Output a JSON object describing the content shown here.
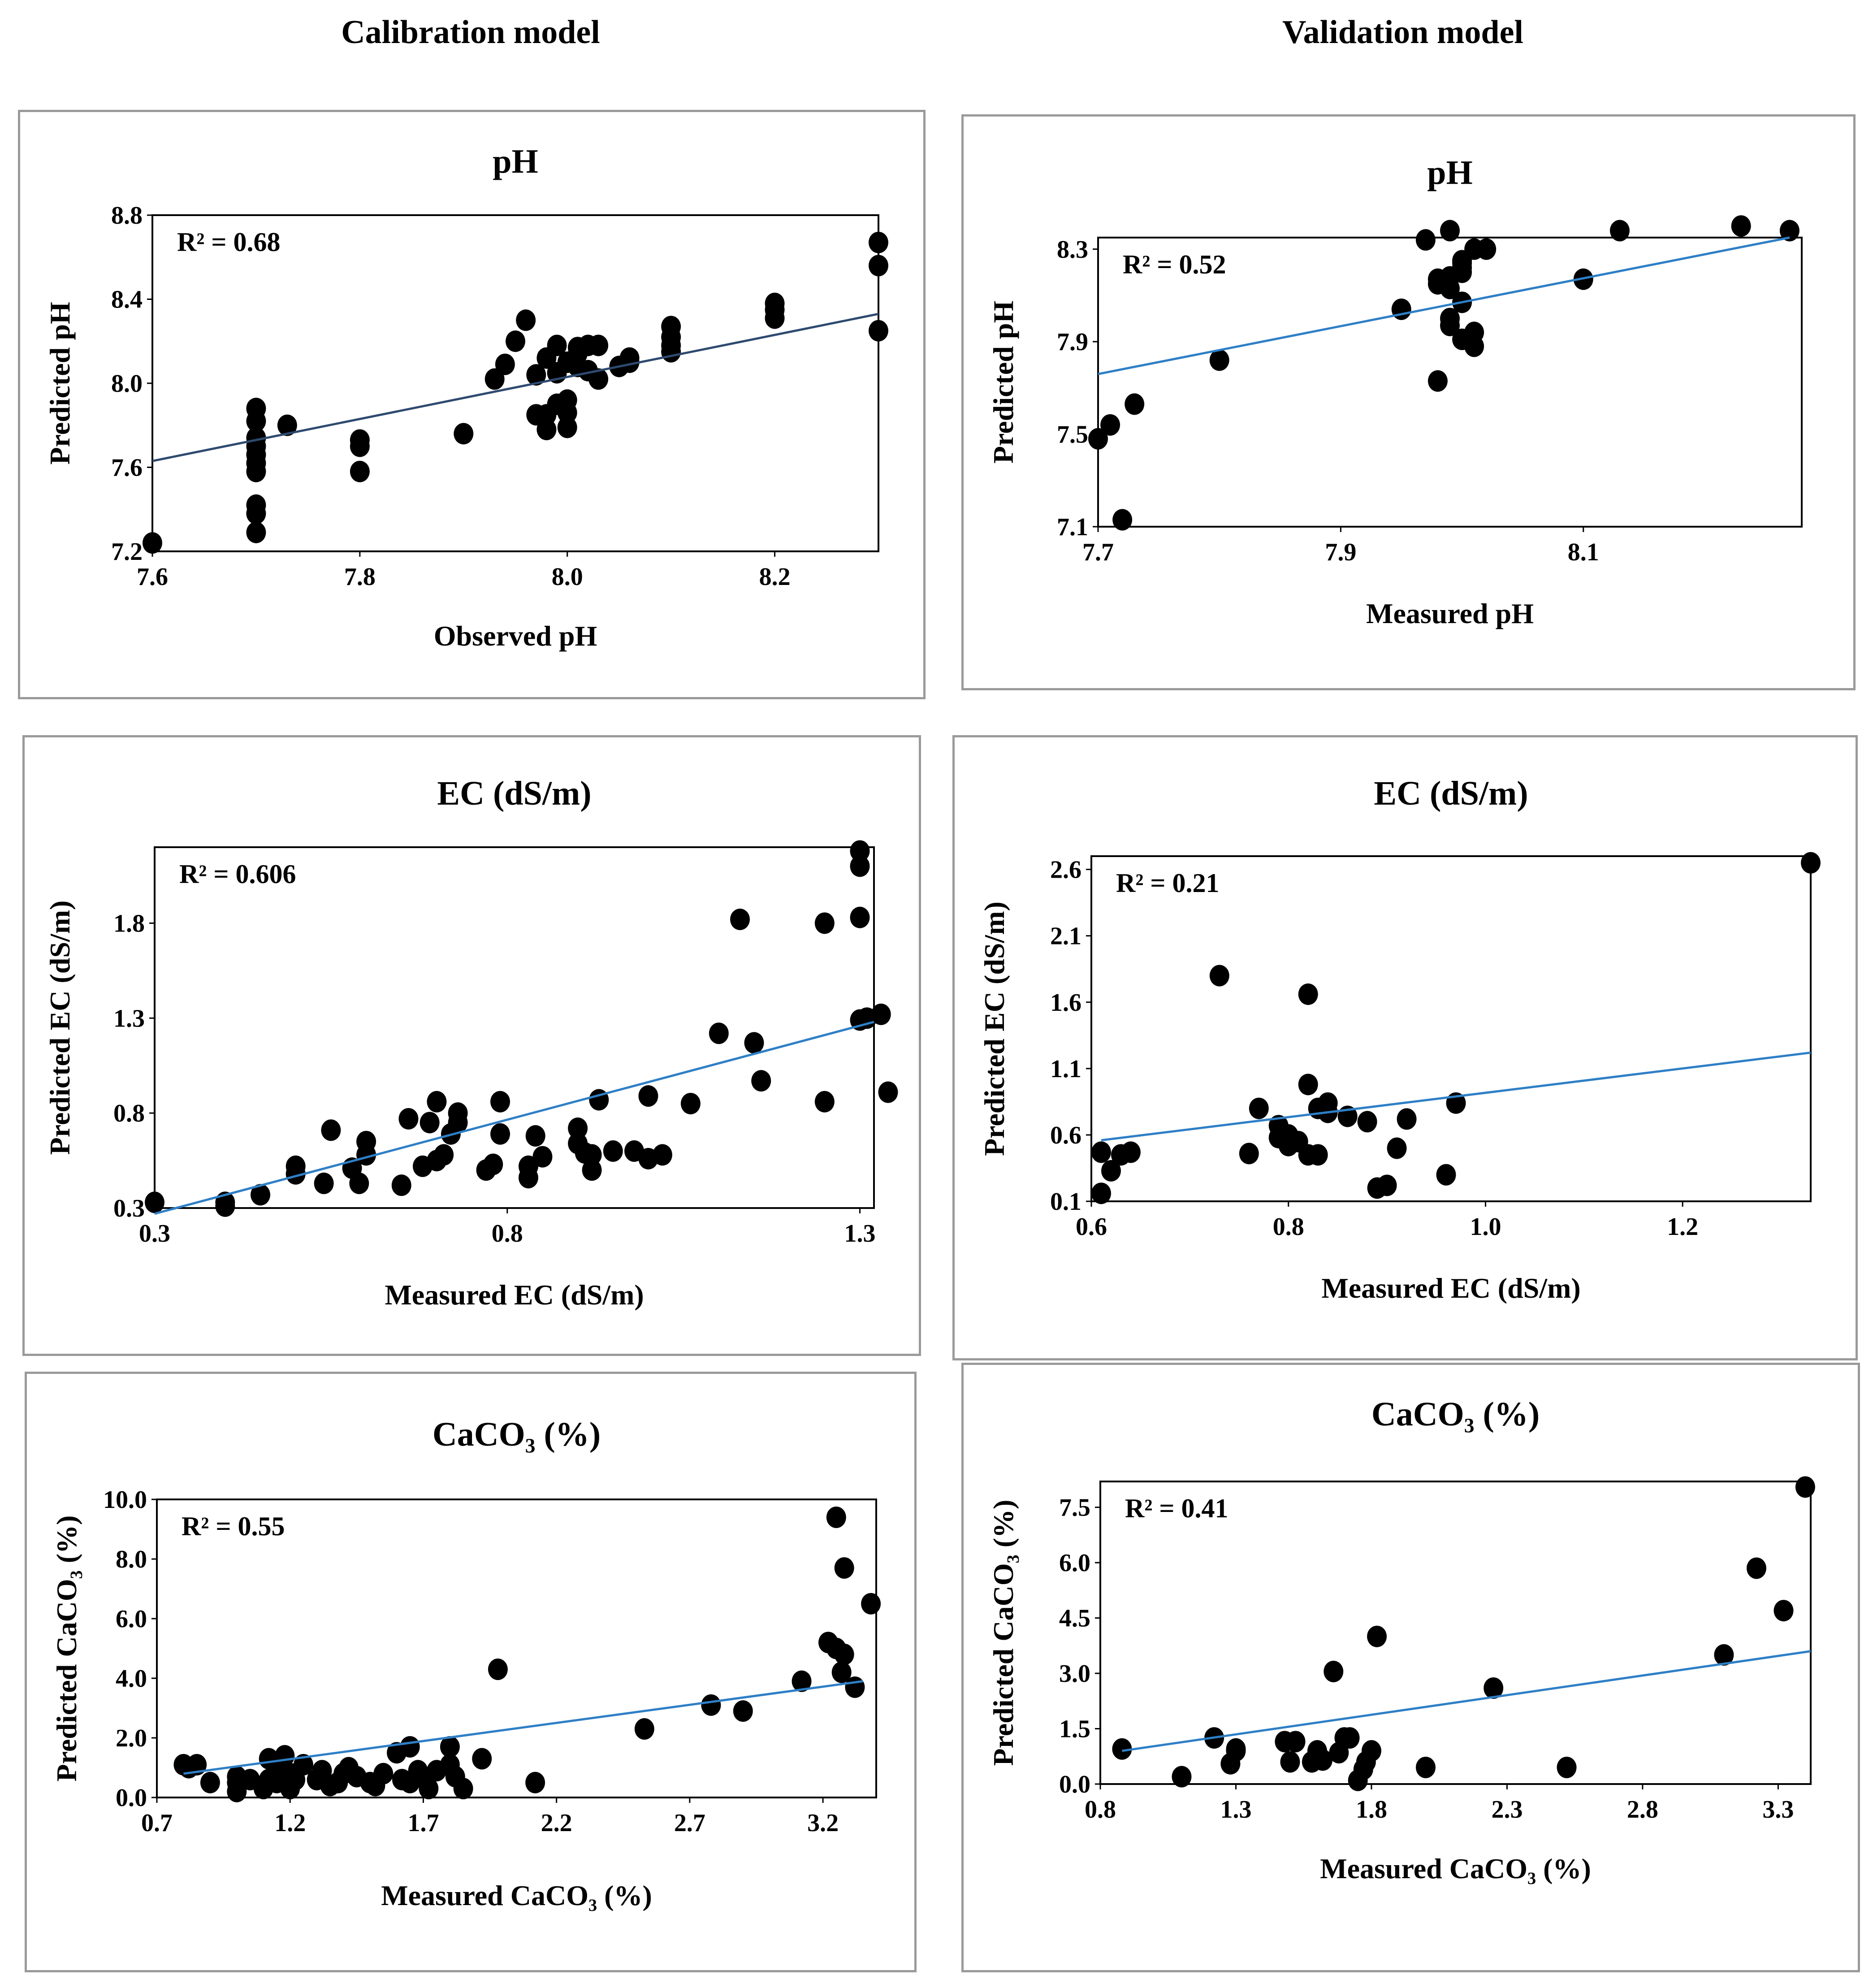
{
  "column_headers": {
    "left": "Calibration model",
    "right": "Validation model"
  },
  "colors": {
    "point": "#000000",
    "trend_calibration_ph": "#2e4a6f",
    "trend": "#2e7fc6",
    "frame": "#000000",
    "panel_border": "#9a9a9a"
  },
  "chart_data": [
    {
      "id": "cal-ph",
      "type": "scatter",
      "title": "pH",
      "xlabel": "Observed pH",
      "ylabel": "Predicted pH",
      "r2_label": "R² = 0.68",
      "xlim": [
        7.6,
        8.3
      ],
      "ylim": [
        7.2,
        8.8
      ],
      "xticks": [
        "7.6",
        "7.8",
        "8.0",
        "8.2"
      ],
      "yticks": [
        "7.2",
        "7.6",
        "8.0",
        "8.4",
        "8.8"
      ],
      "trend": {
        "x": [
          7.6,
          8.3
        ],
        "y": [
          7.63,
          8.33
        ]
      },
      "x": [
        7.6,
        7.7,
        7.7,
        7.7,
        7.7,
        7.7,
        7.7,
        7.7,
        7.7,
        7.7,
        7.7,
        7.73,
        7.8,
        7.8,
        7.8,
        7.9,
        7.93,
        7.94,
        7.95,
        7.96,
        7.97,
        7.97,
        7.98,
        7.98,
        7.98,
        7.99,
        7.99,
        7.99,
        8.0,
        8.0,
        8.0,
        8.0,
        8.01,
        8.01,
        8.01,
        8.02,
        8.02,
        8.03,
        8.03,
        8.05,
        8.06,
        8.06,
        8.1,
        8.1,
        8.1,
        8.1,
        8.2,
        8.2,
        8.2,
        8.3,
        8.3,
        8.3
      ],
      "y": [
        7.24,
        7.29,
        7.38,
        7.42,
        7.58,
        7.62,
        7.66,
        7.7,
        7.74,
        7.82,
        7.88,
        7.8,
        7.58,
        7.7,
        7.73,
        7.76,
        8.02,
        8.09,
        8.2,
        8.3,
        7.85,
        8.04,
        7.78,
        7.85,
        8.12,
        7.9,
        8.05,
        8.18,
        7.79,
        7.86,
        7.92,
        8.1,
        8.08,
        8.14,
        8.17,
        8.06,
        8.18,
        8.02,
        8.18,
        8.08,
        8.1,
        8.12,
        8.15,
        8.18,
        8.22,
        8.27,
        8.31,
        8.35,
        8.38,
        8.25,
        8.56,
        8.67
      ]
    },
    {
      "id": "val-ph",
      "type": "scatter",
      "title": "pH",
      "xlabel": "Measured pH",
      "ylabel": "Predicted pH",
      "r2_label": "R² = 0.52",
      "xlim": [
        7.7,
        8.28
      ],
      "ylim": [
        7.1,
        8.35
      ],
      "xticks": [
        "7.7",
        "7.9",
        "8.1"
      ],
      "yticks": [
        "7.1",
        "7.5",
        "7.9",
        "8.3"
      ],
      "trend": {
        "x": [
          7.7,
          8.27
        ],
        "y": [
          7.76,
          8.35
        ]
      },
      "x": [
        7.7,
        7.71,
        7.72,
        7.73,
        7.8,
        7.95,
        7.97,
        7.98,
        7.98,
        7.98,
        7.99,
        7.99,
        7.99,
        7.99,
        7.99,
        8.0,
        8.0,
        8.0,
        8.0,
        8.0,
        8.0,
        8.01,
        8.01,
        8.01,
        8.02,
        8.1,
        8.13,
        8.23,
        8.27
      ],
      "y": [
        7.48,
        7.54,
        7.13,
        7.63,
        7.82,
        8.04,
        8.34,
        7.73,
        8.17,
        8.15,
        8.38,
        8.0,
        8.13,
        7.97,
        8.18,
        7.91,
        8.07,
        8.2,
        8.24,
        8.22,
        8.25,
        7.88,
        7.94,
        8.3,
        8.3,
        8.17,
        8.38,
        8.4,
        8.38
      ]
    },
    {
      "id": "cal-ec",
      "type": "scatter",
      "title": "EC (dS/m)",
      "xlabel": "Measured EC (dS/m)",
      "ylabel": "Predicted EC (dS/m)",
      "r2_label": "R² = 0.606",
      "xlim": [
        0.3,
        1.32
      ],
      "ylim": [
        0.3,
        2.2
      ],
      "xticks": [
        "0.3",
        "0.8",
        "1.3"
      ],
      "yticks": [
        "0.3",
        "0.8",
        "1.3",
        "1.8"
      ],
      "trend": {
        "x": [
          0.3,
          1.32
        ],
        "y": [
          0.27,
          1.28
        ]
      },
      "x": [
        0.3,
        0.4,
        0.4,
        0.45,
        0.5,
        0.5,
        0.54,
        0.55,
        0.58,
        0.59,
        0.6,
        0.6,
        0.65,
        0.66,
        0.68,
        0.69,
        0.7,
        0.7,
        0.71,
        0.72,
        0.73,
        0.73,
        0.77,
        0.78,
        0.79,
        0.79,
        0.83,
        0.83,
        0.84,
        0.85,
        0.9,
        0.9,
        0.91,
        0.92,
        0.92,
        0.93,
        0.95,
        0.98,
        1.0,
        1.0,
        1.02,
        1.06,
        1.1,
        1.13,
        1.15,
        1.16,
        1.25,
        1.25,
        1.3,
        1.3,
        1.3,
        1.3,
        1.31,
        1.33,
        1.34
      ],
      "y": [
        0.33,
        0.31,
        0.33,
        0.37,
        0.48,
        0.52,
        0.43,
        0.71,
        0.51,
        0.43,
        0.58,
        0.65,
        0.42,
        0.77,
        0.52,
        0.75,
        0.86,
        0.55,
        0.58,
        0.69,
        0.8,
        0.75,
        0.5,
        0.53,
        0.86,
        0.69,
        0.52,
        0.46,
        0.68,
        0.57,
        0.72,
        0.64,
        0.59,
        0.5,
        0.58,
        0.87,
        0.6,
        0.6,
        0.56,
        0.89,
        0.58,
        0.85,
        1.22,
        1.82,
        1.17,
        0.97,
        0.86,
        1.8,
        1.29,
        1.83,
        2.1,
        2.18,
        1.3,
        1.32,
        0.91
      ]
    },
    {
      "id": "val-ec",
      "type": "scatter",
      "title": "EC (dS/m)",
      "xlabel": "Measured EC (dS/m)",
      "ylabel": "Predicted EC (dS/m)",
      "r2_label": "R² = 0.21",
      "xlim": [
        0.6,
        1.33
      ],
      "ylim": [
        0.1,
        2.7
      ],
      "xticks": [
        "0.6",
        "0.8",
        "1.0",
        "1.2"
      ],
      "yticks": [
        "0.1",
        "0.6",
        "1.1",
        "1.6",
        "2.1",
        "2.6"
      ],
      "trend": {
        "x": [
          0.61,
          1.33
        ],
        "y": [
          0.56,
          1.22
        ]
      },
      "x": [
        0.61,
        0.61,
        0.62,
        0.63,
        0.64,
        0.73,
        0.76,
        0.77,
        0.79,
        0.79,
        0.8,
        0.8,
        0.81,
        0.82,
        0.82,
        0.82,
        0.83,
        0.83,
        0.84,
        0.84,
        0.86,
        0.88,
        0.89,
        0.9,
        0.91,
        0.92,
        0.96,
        0.97,
        1.33
      ],
      "y": [
        0.16,
        0.47,
        0.33,
        0.45,
        0.47,
        1.8,
        0.46,
        0.8,
        0.58,
        0.67,
        0.6,
        0.52,
        0.55,
        0.45,
        1.66,
        0.98,
        0.8,
        0.45,
        0.77,
        0.84,
        0.74,
        0.7,
        0.2,
        0.22,
        0.5,
        0.72,
        0.3,
        0.84,
        2.65
      ]
    },
    {
      "id": "cal-caco3",
      "type": "scatter",
      "title": "CaCO₃ (%)",
      "xlabel": "Measured CaCO₃ (%)",
      "ylabel": "Predicted CaCO₃ (%)",
      "r2_label": "R² = 0.55",
      "xlim": [
        0.7,
        3.4
      ],
      "ylim": [
        0.0,
        10.0
      ],
      "xticks": [
        "0.7",
        "1.2",
        "1.7",
        "2.2",
        "2.7",
        "3.2"
      ],
      "yticks": [
        "0.0",
        "2.0",
        "4.0",
        "6.0",
        "8.0",
        "10.0"
      ],
      "trend": {
        "x": [
          0.8,
          3.35
        ],
        "y": [
          0.8,
          3.9
        ]
      },
      "x": [
        0.8,
        0.82,
        0.85,
        0.9,
        1.0,
        1.0,
        1.0,
        1.05,
        1.1,
        1.12,
        1.12,
        1.15,
        1.15,
        1.18,
        1.2,
        1.2,
        1.22,
        1.25,
        1.3,
        1.32,
        1.35,
        1.38,
        1.4,
        1.42,
        1.45,
        1.5,
        1.52,
        1.55,
        1.6,
        1.62,
        1.65,
        1.65,
        1.68,
        1.7,
        1.72,
        1.75,
        1.8,
        1.8,
        1.82,
        1.85,
        1.92,
        1.98,
        2.12,
        2.53,
        2.78,
        2.9,
        3.12,
        3.22,
        3.25,
        3.25,
        3.27,
        3.28,
        3.28,
        3.32,
        3.38
      ],
      "y": [
        1.1,
        1.0,
        1.1,
        0.5,
        0.2,
        0.5,
        0.7,
        0.6,
        0.3,
        0.6,
        1.3,
        1.0,
        0.5,
        1.4,
        0.3,
        0.8,
        0.6,
        1.1,
        0.6,
        0.9,
        0.4,
        0.5,
        0.8,
        1.0,
        0.7,
        0.5,
        0.4,
        0.8,
        1.5,
        0.6,
        1.7,
        0.5,
        0.9,
        0.7,
        0.3,
        0.9,
        1.7,
        1.1,
        0.7,
        0.3,
        1.3,
        4.3,
        0.5,
        2.3,
        3.1,
        2.9,
        3.9,
        5.2,
        9.4,
        5.0,
        4.2,
        7.7,
        4.8,
        3.7,
        6.5
      ]
    },
    {
      "id": "val-caco3",
      "type": "scatter",
      "title": "CaCO₃ (%)",
      "xlabel": "Measured CaCO₃ (%)",
      "ylabel": "Predicted CaCO₃ (%)",
      "r2_label": "R² = 0.41",
      "xlim": [
        0.8,
        3.42
      ],
      "ylim": [
        0.0,
        8.2
      ],
      "xticks": [
        "0.8",
        "1.3",
        "1.8",
        "2.3",
        "2.8",
        "3.3"
      ],
      "yticks": [
        "0.0",
        "1.5",
        "3.0",
        "4.5",
        "6.0",
        "7.5"
      ],
      "trend": {
        "x": [
          0.88,
          3.42
        ],
        "y": [
          0.9,
          3.6
        ]
      },
      "x": [
        0.88,
        1.1,
        1.22,
        1.28,
        1.3,
        1.3,
        1.48,
        1.5,
        1.52,
        1.58,
        1.6,
        1.62,
        1.66,
        1.68,
        1.7,
        1.72,
        1.75,
        1.77,
        1.78,
        1.8,
        1.82,
        2.0,
        2.25,
        2.52,
        3.1,
        3.22,
        3.32,
        3.4
      ],
      "y": [
        0.95,
        0.2,
        1.25,
        0.55,
        0.9,
        0.95,
        1.15,
        0.6,
        1.15,
        0.6,
        0.9,
        0.65,
        3.05,
        0.85,
        1.25,
        1.25,
        0.1,
        0.4,
        0.6,
        0.9,
        4.0,
        0.45,
        2.6,
        0.45,
        3.5,
        5.85,
        4.7,
        8.05
      ]
    }
  ]
}
